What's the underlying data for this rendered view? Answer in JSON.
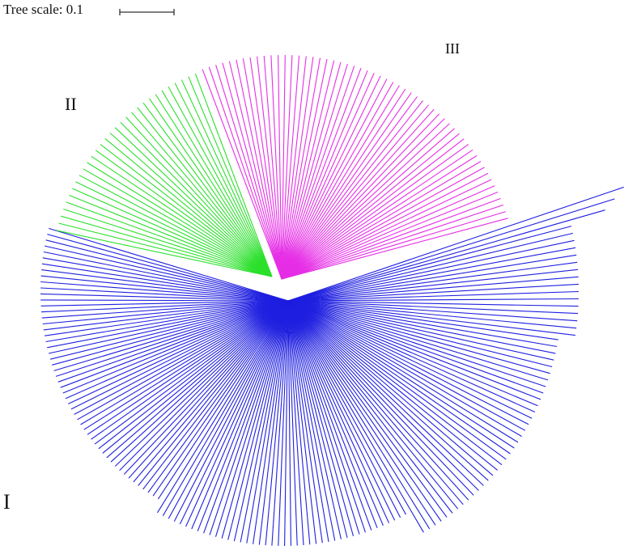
{
  "scale": {
    "label": "Tree scale: 0.1",
    "value": 0.1
  },
  "clades": [
    {
      "label": "I",
      "color": "#1f1fe0",
      "leaf_count": 150
    },
    {
      "label": "II",
      "color": "#2be02b",
      "leaf_count": 30
    },
    {
      "label": "III",
      "color": "#e62ee6",
      "leaf_count": 55
    }
  ]
}
